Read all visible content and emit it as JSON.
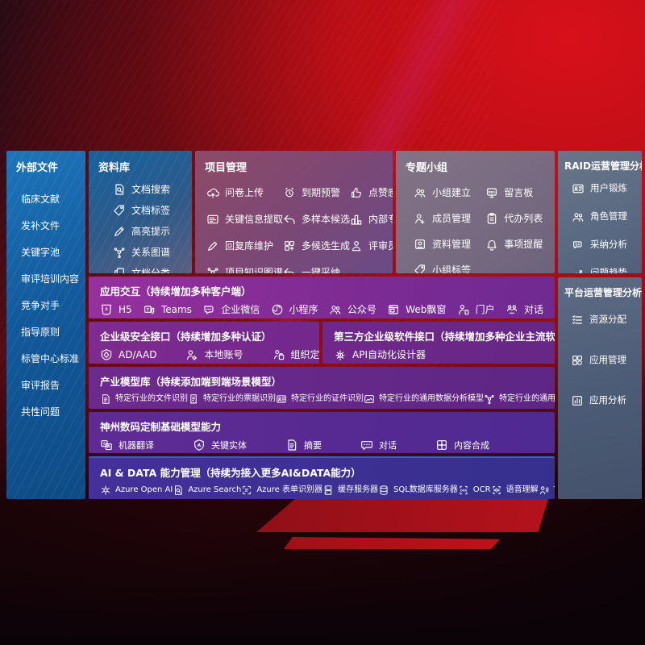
{
  "accent": {
    "background_red": "#c40d17",
    "screen_blue": "#1a70b8",
    "screen_purple": "#7d2b94",
    "screen_indigo": "#3d3090",
    "ai_row_topline": "#2e62d9"
  },
  "external_files": {
    "title": "外部文件",
    "items": [
      {
        "label": "临床文献"
      },
      {
        "label": "发补文件"
      },
      {
        "label": "关键字池"
      },
      {
        "label": "审评培训内容"
      },
      {
        "label": "竞争对手"
      },
      {
        "label": "指导原则"
      },
      {
        "label": "标管中心标准"
      },
      {
        "label": "审评报告"
      },
      {
        "label": "共性问题"
      }
    ]
  },
  "library": {
    "title": "资料库",
    "items": [
      {
        "icon": "doc-search-icon",
        "label": "文档搜索"
      },
      {
        "icon": "tag-icon",
        "label": "文档标签"
      },
      {
        "icon": "highlight-icon",
        "label": "高亮提示"
      },
      {
        "icon": "network-icon",
        "label": "关系图谱"
      },
      {
        "icon": "docs-icon",
        "label": "文档分类"
      }
    ]
  },
  "project": {
    "title": "项目管理",
    "items": [
      {
        "icon": "cloud-upload-icon",
        "label": "问卷上传"
      },
      {
        "icon": "alarm-icon",
        "label": "到期预警"
      },
      {
        "icon": "thumb-up-icon",
        "label": "点赞感谢"
      },
      {
        "icon": "extract-icon",
        "label": "关键信息提取"
      },
      {
        "icon": "reply-icon",
        "label": "多样本候选"
      },
      {
        "icon": "podium-icon",
        "label": "内部专家排名"
      },
      {
        "icon": "pen-icon",
        "label": "回复库维护"
      },
      {
        "icon": "grid-gen-icon",
        "label": "多候选生成"
      },
      {
        "icon": "person-icon",
        "label": "评审员画像"
      },
      {
        "icon": "network-icon",
        "label": "项目知识图谱"
      },
      {
        "icon": "reply-icon",
        "label": "一键采纳"
      }
    ]
  },
  "groups": {
    "title": "专题小组",
    "items": [
      {
        "icon": "people-icon",
        "label": "小组建立"
      },
      {
        "icon": "bbs-icon",
        "label": "留言板"
      },
      {
        "icon": "person-add-icon",
        "label": "成员管理"
      },
      {
        "icon": "clipboard-icon",
        "label": "代办列表"
      },
      {
        "icon": "album-icon",
        "label": "资料管理"
      },
      {
        "icon": "bell-icon",
        "label": "事项提醒"
      },
      {
        "icon": "tag-icon",
        "label": "小组标签"
      }
    ]
  },
  "raid": {
    "title": "RAID运营管理分析",
    "items": [
      {
        "icon": "id-card-icon",
        "label": "用户锻炼"
      },
      {
        "icon": "people-icon",
        "label": "角色管理"
      },
      {
        "icon": "chat-qa-icon",
        "label": "采纳分析"
      },
      {
        "icon": "trend-icon",
        "label": "问题趋势"
      }
    ]
  },
  "platform": {
    "title": "平台运营管理分析",
    "items": [
      {
        "icon": "list-check-icon",
        "label": "资源分配"
      },
      {
        "icon": "app-grid-icon",
        "label": "应用管理"
      },
      {
        "icon": "chart-bars-icon",
        "label": "应用分析"
      }
    ]
  },
  "interaction": {
    "title": "应用交互（持续增加多种客户端）",
    "items": [
      {
        "icon": "h5-icon",
        "label": "H5"
      },
      {
        "icon": "teams-icon",
        "label": "Teams"
      },
      {
        "icon": "wechat-icon",
        "label": "企业微信"
      },
      {
        "icon": "miniprogram-icon",
        "label": "小程序"
      },
      {
        "icon": "people-icon",
        "label": "公众号"
      },
      {
        "icon": "browser-icon",
        "label": "Web飘窗"
      },
      {
        "icon": "portal-icon",
        "label": "门户"
      },
      {
        "icon": "dialog-icon",
        "label": "对话"
      }
    ]
  },
  "security": {
    "title": "企业级安全接口（持续增加多种认证）",
    "items": [
      {
        "icon": "ad-shield-icon",
        "label": "AD/AAD"
      },
      {
        "icon": "person-local-icon",
        "label": "本地账号"
      },
      {
        "icon": "person-org-icon",
        "label": "组织定义"
      }
    ]
  },
  "thirdparty": {
    "title": "第三方企业级软件接口（持续增加多种企业主流软件接口）",
    "items": [
      {
        "icon": "api-gear-icon",
        "label": "API自动化设计器"
      }
    ]
  },
  "industry": {
    "title": "产业模型库（持续添加端到端场景模型）",
    "items": [
      {
        "icon": "doc-icon",
        "label": "特定行业的文件识别"
      },
      {
        "icon": "receipt-icon",
        "label": "特定行业的票据识别"
      },
      {
        "icon": "id-card-icon",
        "label": "特定行业的证件识别"
      },
      {
        "icon": "image-model-icon",
        "label": "特定行业的通用数据分析模型"
      },
      {
        "icon": "network-icon",
        "label": "特定行业的通用知识图谱模型"
      }
    ]
  },
  "base_models": {
    "title": "神州数码定制基础模型能力",
    "items": [
      {
        "icon": "translate-icon",
        "label": "机器翻译"
      },
      {
        "icon": "shield-a-icon",
        "label": "关键实体"
      },
      {
        "icon": "doc-icon",
        "label": "摘要"
      },
      {
        "icon": "chat-icon",
        "label": "对话"
      },
      {
        "icon": "content-grid-icon",
        "label": "内容合成"
      }
    ]
  },
  "ai_data": {
    "title": "AI & DATA 能力管理（持续为接入更多AI&DATA能力）",
    "items": [
      {
        "icon": "openai-icon",
        "label": "Azure Open AI"
      },
      {
        "icon": "search-doc-icon",
        "label": "Azure Search"
      },
      {
        "icon": "form-brackets-icon",
        "label": "Azure 表单识别器"
      },
      {
        "icon": "server-icon",
        "label": "缓存服务器"
      },
      {
        "icon": "database-icon",
        "label": "SQL数据库服务器"
      },
      {
        "icon": "ocr-icon",
        "label": "OCR"
      },
      {
        "icon": "speech-icon",
        "label": "语音理解"
      },
      {
        "icon": "tts-icon",
        "label": "TTS"
      }
    ]
  }
}
